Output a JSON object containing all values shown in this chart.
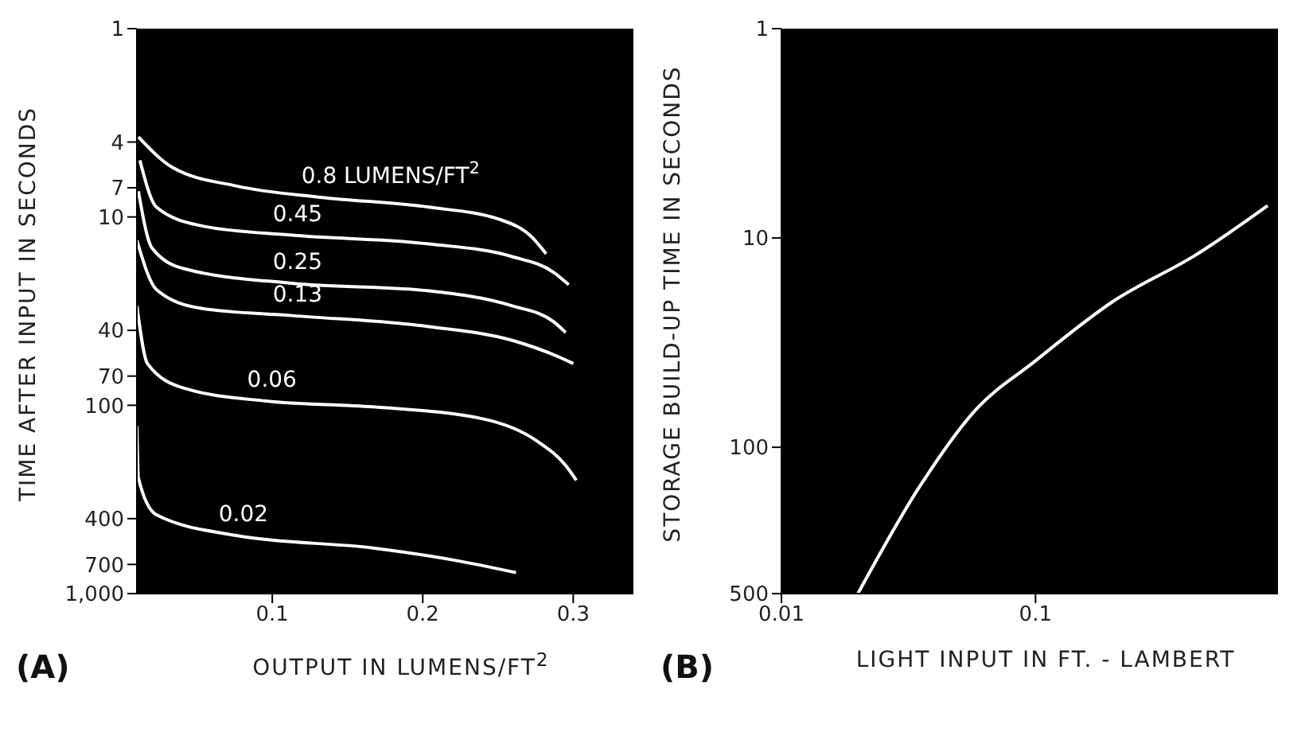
{
  "chart_data": [
    {
      "type": "line",
      "xlabel": "OUTPUT IN LUMENS/FT$^{2}$",
      "ylabel": "TIME AFTER INPUT IN SECONDS",
      "log": "y",
      "xlim": [
        0.01,
        0.34
      ],
      "xticks": [
        0.1,
        0.2,
        0.3
      ],
      "ylim": [
        1000,
        1
      ],
      "yticks": [
        1,
        4,
        7,
        10,
        40,
        70,
        100,
        400,
        700,
        {
          "value": 1000,
          "label": "1,000"
        }
      ],
      "annotations": [
        "(A)"
      ],
      "series": [
        {
          "name": "0.8 LUMENS/FT$^{2}$",
          "color": "#ffffff",
          "x": [
            0.011,
            0.034,
            0.077,
            0.132,
            0.204,
            0.251,
            0.273,
            0.282
          ],
          "values": [
            3.76,
            5.48,
            6.87,
            7.86,
            8.87,
            10.3,
            12.9,
            15.7
          ]
        },
        {
          "name": "0.45",
          "color": "#ffffff",
          "x": [
            0.012,
            0.023,
            0.052,
            0.113,
            0.204,
            0.259,
            0.287,
            0.297
          ],
          "values": [
            5.0,
            8.87,
            11.1,
            12.5,
            13.9,
            16.2,
            19.7,
            22.9
          ]
        },
        {
          "name": "0.25",
          "color": "#ffffff",
          "x": [
            0.011,
            0.02,
            0.041,
            0.113,
            0.204,
            0.259,
            0.287,
            0.295
          ],
          "values": [
            7.3,
            14.6,
            18.8,
            22.5,
            24.7,
            29.6,
            36.0,
            41.1
          ]
        },
        {
          "name": "0.13",
          "color": "#ffffff",
          "x": [
            0.01,
            0.023,
            0.052,
            0.113,
            0.204,
            0.259,
            0.291,
            0.3
          ],
          "values": [
            13.3,
            24.3,
            30.5,
            33.4,
            38.2,
            45.1,
            55.6,
            60
          ]
        },
        {
          "name": "0.06",
          "color": "#ffffff",
          "x": [
            0.01,
            0.017,
            0.041,
            0.096,
            0.167,
            0.24,
            0.276,
            0.295,
            0.302
          ],
          "values": [
            29.6,
            60,
            81,
            95,
            102,
            118,
            155,
            209,
            250
          ]
        },
        {
          "name": "0.02",
          "color": "#ffffff",
          "x": [
            0.01,
            0.011,
            0.023,
            0.077,
            0.167,
            0.222,
            0.262
          ],
          "values": [
            129,
            243,
            382,
            493,
            573,
            667,
            774
          ]
        }
      ]
    },
    {
      "type": "line",
      "xlabel": "LIGHT INPUT IN FT. - LAMBERT",
      "ylabel": "STORAGE BUILD-UP TIME IN SECONDS",
      "log": "xy",
      "xlim": [
        0.01,
        0.9
      ],
      "xticks": [
        0.01,
        0.1
      ],
      "ylim": [
        500,
        1
      ],
      "yticks": [
        1,
        10,
        100,
        500
      ],
      "annotations": [
        "(B)"
      ],
      "series": [
        {
          "color": "#ffffff",
          "x": [
            0.02,
            0.035,
            0.057,
            0.1,
            0.203,
            0.43,
            0.82
          ],
          "values": [
            500,
            154,
            68,
            38.6,
            20,
            12,
            7.0
          ]
        }
      ]
    }
  ]
}
